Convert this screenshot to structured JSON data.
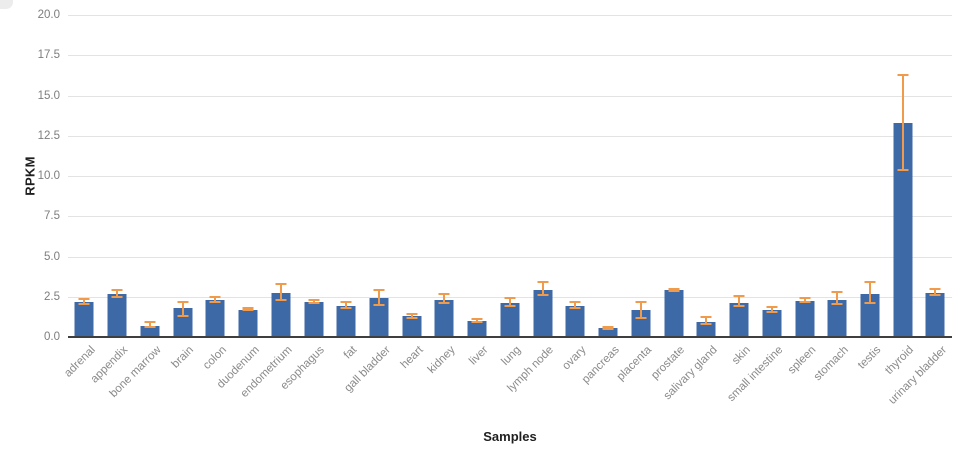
{
  "chart_data": {
    "type": "bar",
    "title": "",
    "xlabel": "Samples",
    "ylabel": "RPKM",
    "ylim": [
      0,
      20
    ],
    "ytick_step": 2.5,
    "ytick_labels": [
      "20.0",
      "17.5",
      "15.0",
      "12.5",
      "10.0",
      "7.5",
      "5.0",
      "2.5",
      "0.0"
    ],
    "grid": true,
    "legend": "none",
    "bar_color": "#3d6aa6",
    "error_color": "#f09b4c",
    "categories": [
      "adrenal",
      "appendix",
      "bone marrow",
      "brain",
      "colon",
      "duodenum",
      "endometrium",
      "esophagus",
      "fat",
      "gall bladder",
      "heart",
      "kidney",
      "liver",
      "lung",
      "lymph node",
      "ovary",
      "pancreas",
      "placenta",
      "prostate",
      "salivary gland",
      "skin",
      "small intestine",
      "spleen",
      "stomach",
      "testis",
      "thyroid",
      "urinary bladder"
    ],
    "values": [
      2.2,
      2.65,
      0.7,
      1.8,
      2.3,
      1.7,
      2.75,
      2.2,
      1.95,
      2.4,
      1.3,
      2.3,
      1.0,
      2.1,
      2.9,
      1.9,
      0.55,
      1.7,
      2.9,
      0.95,
      2.1,
      1.65,
      2.25,
      2.3,
      2.7,
      13.3,
      2.75
    ],
    "error_low": [
      2.05,
      2.5,
      0.6,
      1.3,
      2.15,
      1.65,
      2.3,
      2.1,
      1.8,
      2.0,
      1.2,
      2.1,
      0.95,
      1.95,
      2.6,
      1.8,
      0.5,
      1.2,
      2.85,
      0.8,
      1.9,
      1.55,
      2.15,
      2.05,
      2.1,
      10.4,
      2.6
    ],
    "error_high": [
      2.35,
      2.95,
      0.95,
      2.15,
      2.5,
      1.8,
      3.3,
      2.3,
      2.2,
      2.9,
      1.45,
      2.7,
      1.1,
      2.45,
      3.4,
      2.15,
      0.65,
      2.2,
      3.0,
      1.25,
      2.55,
      1.85,
      2.45,
      2.8,
      3.4,
      16.3,
      3.0
    ]
  }
}
